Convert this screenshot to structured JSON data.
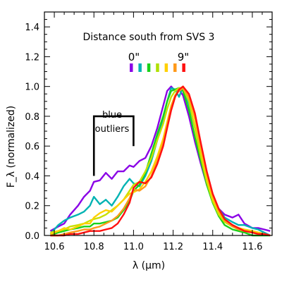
{
  "chart_data": {
    "type": "line",
    "title": "Distance south from SVS 3",
    "xlabel": "λ (μm)",
    "ylabel": "F_λ (normalized)",
    "xlim": [
      10.55,
      11.7
    ],
    "ylim": [
      0.0,
      1.5
    ],
    "x_ticks": [
      10.6,
      10.8,
      11.0,
      11.2,
      11.4,
      11.6
    ],
    "x_tick_labels": [
      "10.6",
      "10.8",
      "11.0",
      "11.2",
      "11.4",
      "11.6"
    ],
    "y_ticks": [
      0.0,
      0.2,
      0.4,
      0.6,
      0.8,
      1.0,
      1.2,
      1.4
    ],
    "y_tick_labels": [
      "0.0",
      "0.2",
      "0.4",
      "0.6",
      "0.8",
      "1.0",
      "1.2",
      "1.4"
    ],
    "color_legend": {
      "start_label": "0\"",
      "end_label": "9\"",
      "start_color": "#8a00e6",
      "end_color": "#ff1010",
      "swatches": [
        "#8a00e6",
        "#00b3b3",
        "#1ad21a",
        "#b0e000",
        "#ffd000",
        "#ff9a1a",
        "#ff1010"
      ]
    },
    "annotation": {
      "text_lines": [
        "blue",
        "outliers"
      ],
      "bracket_x": [
        10.8,
        11.0
      ],
      "bracket_y": 0.8
    },
    "series": [
      {
        "color": "#8a00e6",
        "x": [
          10.58,
          10.62,
          10.65,
          10.68,
          10.72,
          10.75,
          10.78,
          10.8,
          10.83,
          10.86,
          10.89,
          10.92,
          10.95,
          10.98,
          11.0,
          11.03,
          11.06,
          11.09,
          11.12,
          11.15,
          11.17,
          11.19,
          11.21,
          11.23,
          11.25,
          11.28,
          11.31,
          11.34,
          11.37,
          11.4,
          11.43,
          11.46,
          11.5,
          11.53,
          11.56,
          11.6,
          11.63,
          11.66,
          11.69
        ],
        "y": [
          0.03,
          0.06,
          0.08,
          0.14,
          0.2,
          0.26,
          0.3,
          0.36,
          0.37,
          0.42,
          0.38,
          0.43,
          0.43,
          0.47,
          0.46,
          0.5,
          0.52,
          0.6,
          0.72,
          0.87,
          0.97,
          1.0,
          0.97,
          0.98,
          0.94,
          0.8,
          0.63,
          0.48,
          0.34,
          0.25,
          0.18,
          0.14,
          0.12,
          0.14,
          0.08,
          0.05,
          0.05,
          0.04,
          0.03
        ]
      },
      {
        "color": "#00b3b3",
        "x": [
          10.58,
          10.62,
          10.65,
          10.68,
          10.72,
          10.75,
          10.78,
          10.8,
          10.83,
          10.86,
          10.89,
          10.92,
          10.95,
          10.98,
          11.0,
          11.03,
          11.06,
          11.09,
          11.12,
          11.15,
          11.17,
          11.19,
          11.21,
          11.23,
          11.25,
          11.28,
          11.31,
          11.34,
          11.37,
          11.4,
          11.43,
          11.46,
          11.5,
          11.53,
          11.56,
          11.6,
          11.63,
          11.66,
          11.69
        ],
        "y": [
          0.01,
          0.07,
          0.1,
          0.12,
          0.14,
          0.16,
          0.2,
          0.26,
          0.21,
          0.24,
          0.2,
          0.26,
          0.33,
          0.38,
          0.35,
          0.33,
          0.4,
          0.5,
          0.64,
          0.79,
          0.9,
          0.99,
          0.98,
          0.93,
          1.0,
          0.88,
          0.72,
          0.54,
          0.39,
          0.27,
          0.18,
          0.12,
          0.09,
          0.07,
          0.07,
          0.05,
          0.04,
          0.02,
          0.0
        ]
      },
      {
        "color": "#1ad21a",
        "x": [
          10.58,
          10.62,
          10.65,
          10.68,
          10.72,
          10.75,
          10.78,
          10.8,
          10.83,
          10.86,
          10.89,
          10.92,
          10.95,
          10.98,
          11.0,
          11.03,
          11.06,
          11.09,
          11.12,
          11.15,
          11.17,
          11.19,
          11.21,
          11.23,
          11.25,
          11.28,
          11.31,
          11.34,
          11.37,
          11.4,
          11.43,
          11.46,
          11.5,
          11.53,
          11.56,
          11.6,
          11.63,
          11.66,
          11.69
        ],
        "y": [
          0.0,
          0.02,
          0.03,
          0.04,
          0.05,
          0.06,
          0.06,
          0.08,
          0.08,
          0.09,
          0.1,
          0.12,
          0.17,
          0.23,
          0.3,
          0.34,
          0.42,
          0.55,
          0.68,
          0.8,
          0.9,
          0.97,
          0.98,
          0.99,
          0.97,
          0.84,
          0.66,
          0.5,
          0.34,
          0.22,
          0.13,
          0.07,
          0.04,
          0.03,
          0.02,
          0.0,
          0.0,
          0.0,
          0.0
        ]
      },
      {
        "color": "#c8e000",
        "x": [
          10.58,
          10.62,
          10.65,
          10.68,
          10.72,
          10.75,
          10.78,
          10.8,
          10.83,
          10.86,
          10.89,
          10.92,
          10.95,
          10.98,
          11.0,
          11.03,
          11.06,
          11.09,
          11.12,
          11.15,
          11.17,
          11.19,
          11.21,
          11.23,
          11.25,
          11.28,
          11.31,
          11.34,
          11.37,
          11.4,
          11.43,
          11.46,
          11.5,
          11.53,
          11.56,
          11.6,
          11.63,
          11.66,
          11.69
        ],
        "y": [
          0.02,
          0.03,
          0.04,
          0.06,
          0.07,
          0.08,
          0.1,
          0.11,
          0.12,
          0.14,
          0.17,
          0.2,
          0.24,
          0.3,
          0.34,
          0.36,
          0.43,
          0.52,
          0.64,
          0.75,
          0.85,
          0.93,
          0.97,
          0.99,
          0.99,
          0.9,
          0.72,
          0.53,
          0.36,
          0.23,
          0.14,
          0.09,
          0.06,
          0.05,
          0.04,
          0.03,
          0.02,
          0.01,
          0.0
        ]
      },
      {
        "color": "#ffd000",
        "x": [
          10.58,
          10.62,
          10.65,
          10.68,
          10.72,
          10.75,
          10.78,
          10.8,
          10.83,
          10.86,
          10.89,
          10.92,
          10.95,
          10.98,
          11.0,
          11.03,
          11.06,
          11.09,
          11.12,
          11.15,
          11.17,
          11.19,
          11.21,
          11.23,
          11.25,
          11.28,
          11.31,
          11.34,
          11.37,
          11.4,
          11.43,
          11.46,
          11.5,
          11.53,
          11.56,
          11.6,
          11.63,
          11.66,
          11.69
        ],
        "y": [
          0.01,
          0.03,
          0.05,
          0.04,
          0.06,
          0.08,
          0.08,
          0.12,
          0.15,
          0.17,
          0.16,
          0.2,
          0.24,
          0.28,
          0.29,
          0.31,
          0.36,
          0.43,
          0.53,
          0.65,
          0.76,
          0.87,
          0.94,
          0.98,
          1.0,
          0.94,
          0.78,
          0.58,
          0.39,
          0.25,
          0.16,
          0.1,
          0.07,
          0.05,
          0.04,
          0.03,
          0.02,
          0.01,
          0.0
        ]
      },
      {
        "color": "#ff9a1a",
        "x": [
          10.58,
          10.62,
          10.65,
          10.68,
          10.72,
          10.75,
          10.78,
          10.8,
          10.83,
          10.86,
          10.89,
          10.92,
          10.95,
          10.98,
          11.0,
          11.03,
          11.06,
          11.09,
          11.12,
          11.15,
          11.17,
          11.19,
          11.21,
          11.23,
          11.25,
          11.28,
          11.31,
          11.34,
          11.37,
          11.4,
          11.43,
          11.46,
          11.5,
          11.53,
          11.56,
          11.6,
          11.63,
          11.66,
          11.69
        ],
        "y": [
          0.0,
          0.0,
          0.01,
          0.02,
          0.03,
          0.04,
          0.04,
          0.05,
          0.06,
          0.08,
          0.1,
          0.13,
          0.18,
          0.25,
          0.31,
          0.3,
          0.33,
          0.4,
          0.5,
          0.62,
          0.74,
          0.86,
          0.94,
          0.97,
          0.99,
          0.93,
          0.8,
          0.6,
          0.42,
          0.27,
          0.17,
          0.1,
          0.06,
          0.04,
          0.03,
          0.02,
          0.01,
          0.01,
          0.0
        ]
      },
      {
        "color": "#ff1010",
        "x": [
          10.58,
          10.62,
          10.65,
          10.68,
          10.72,
          10.75,
          10.78,
          10.8,
          10.83,
          10.86,
          10.89,
          10.92,
          10.95,
          10.98,
          11.0,
          11.03,
          11.06,
          11.09,
          11.12,
          11.15,
          11.17,
          11.19,
          11.21,
          11.23,
          11.25,
          11.28,
          11.31,
          11.34,
          11.37,
          11.4,
          11.43,
          11.46,
          11.5,
          11.53,
          11.56,
          11.6,
          11.63,
          11.66,
          11.69
        ],
        "y": [
          0.0,
          0.0,
          0.0,
          0.01,
          0.01,
          0.02,
          0.03,
          0.03,
          0.03,
          0.04,
          0.05,
          0.08,
          0.14,
          0.22,
          0.32,
          0.36,
          0.35,
          0.39,
          0.48,
          0.6,
          0.72,
          0.84,
          0.93,
          0.98,
          1.0,
          0.95,
          0.82,
          0.62,
          0.43,
          0.28,
          0.18,
          0.11,
          0.07,
          0.05,
          0.03,
          0.02,
          0.01,
          0.01,
          0.0
        ]
      }
    ]
  }
}
